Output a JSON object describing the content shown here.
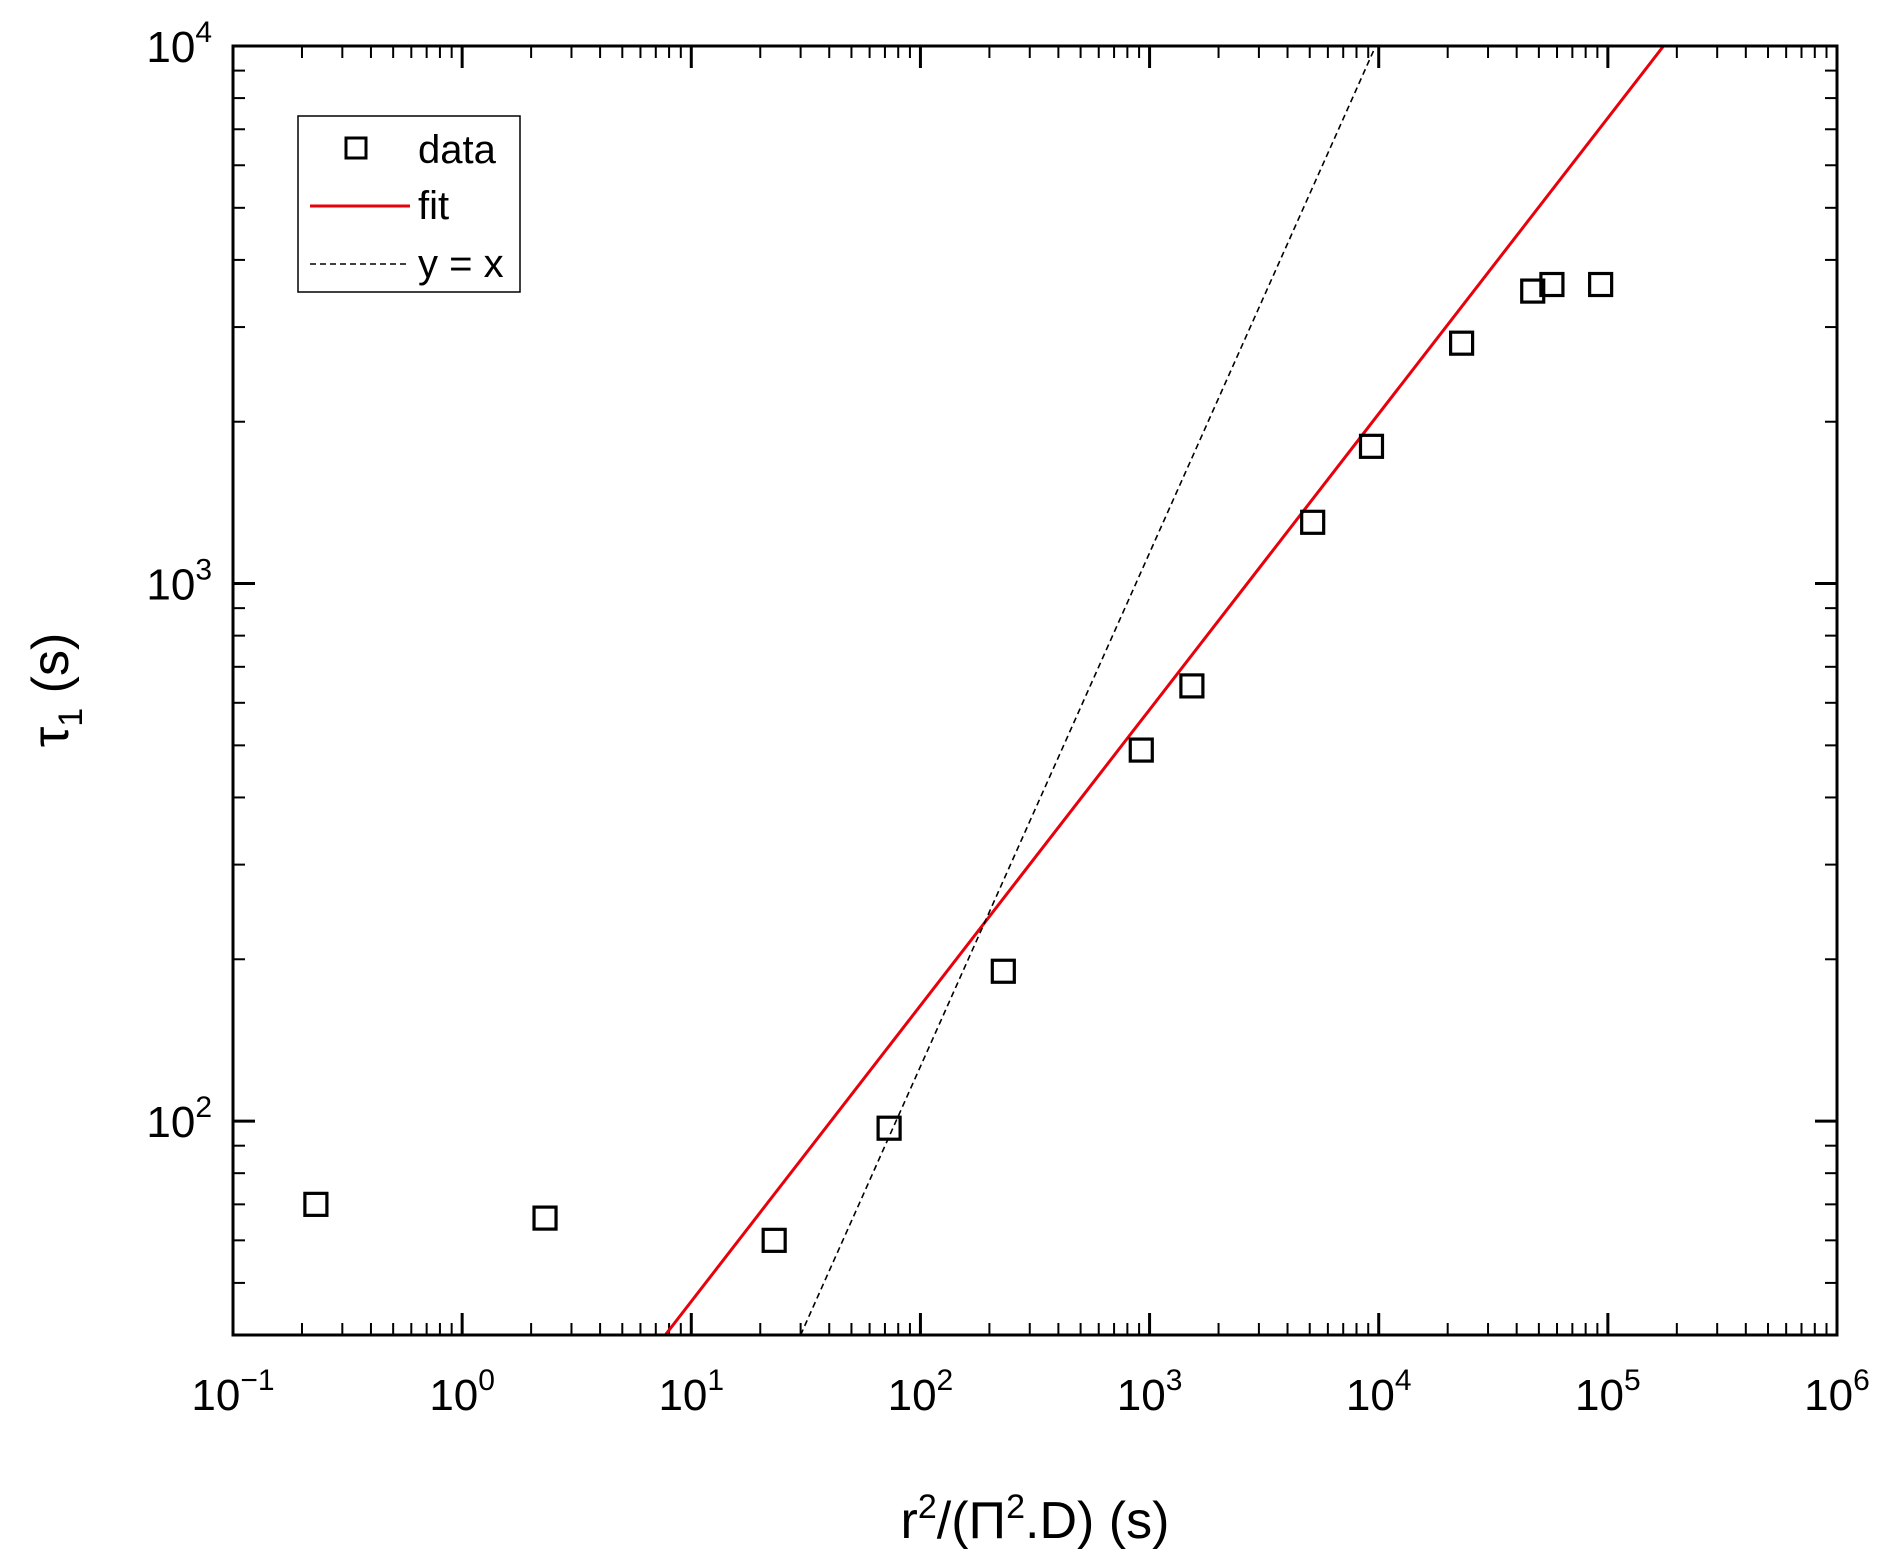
{
  "chart_data": {
    "type": "scatter",
    "x_scale": "log",
    "y_scale": "log",
    "xlim": [
      0.1,
      1000000
    ],
    "ylim": [
      40,
      10000
    ],
    "xlabel": {
      "main": "r",
      "sup1": "2",
      "mid": "/(Π",
      "sup2": "2",
      "tail": ".D) (s)"
    },
    "ylabel": {
      "main": "τ",
      "sub": "1",
      "tail": " (s)"
    },
    "x_ticks": [
      {
        "base": "10",
        "exp": "−1",
        "value": 0.1
      },
      {
        "base": "10",
        "exp": "0",
        "value": 1
      },
      {
        "base": "10",
        "exp": "1",
        "value": 10
      },
      {
        "base": "10",
        "exp": "2",
        "value": 100
      },
      {
        "base": "10",
        "exp": "3",
        "value": 1000
      },
      {
        "base": "10",
        "exp": "4",
        "value": 10000
      },
      {
        "base": "10",
        "exp": "5",
        "value": 100000
      },
      {
        "base": "10",
        "exp": "6",
        "value": 1000000
      }
    ],
    "y_ticks": [
      {
        "base": "10",
        "exp": "2",
        "value": 100
      },
      {
        "base": "10",
        "exp": "3",
        "value": 1000
      },
      {
        "base": "10",
        "exp": "4",
        "value": 10000
      }
    ],
    "legend": {
      "position": "top-left",
      "entries": [
        {
          "label": "data",
          "marker": "square"
        },
        {
          "label": "fit",
          "marker": "line",
          "color": "#e8000b"
        },
        {
          "label": "y = x",
          "marker": "dashed-line",
          "color": "#000000"
        }
      ]
    },
    "series": [
      {
        "name": "data",
        "marker": "square",
        "points": [
          {
            "x": 0.23,
            "y": 70
          },
          {
            "x": 2.3,
            "y": 66
          },
          {
            "x": 23,
            "y": 60
          },
          {
            "x": 73,
            "y": 97
          },
          {
            "x": 230,
            "y": 190
          },
          {
            "x": 920,
            "y": 490
          },
          {
            "x": 1530,
            "y": 645
          },
          {
            "x": 5150,
            "y": 1300
          },
          {
            "x": 9300,
            "y": 1800
          },
          {
            "x": 23000,
            "y": 2800
          },
          {
            "x": 47000,
            "y": 3500
          },
          {
            "x": 57000,
            "y": 3600
          },
          {
            "x": 93000,
            "y": 3600
          }
        ]
      },
      {
        "name": "fit",
        "color": "#e8000b",
        "style": "solid",
        "points": [
          {
            "x": 7.7,
            "y": 40
          },
          {
            "x": 175000,
            "y": 10000
          }
        ]
      },
      {
        "name": "y = x",
        "color": "#000000",
        "style": "dashed",
        "points": [
          {
            "x": 30,
            "y": 40
          },
          {
            "x": 9700,
            "y": 10000
          }
        ]
      }
    ]
  }
}
